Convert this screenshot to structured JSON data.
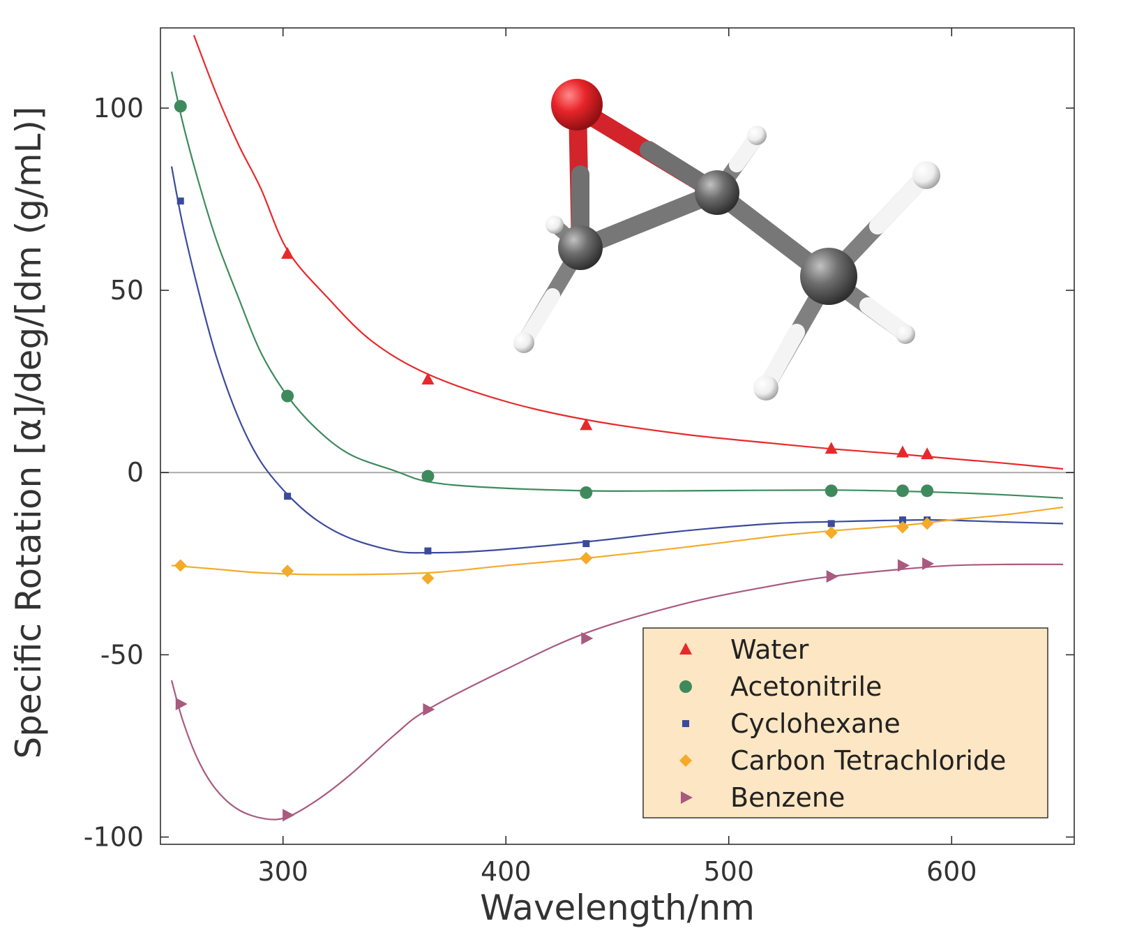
{
  "chart_data": {
    "type": "scatter",
    "xlabel": "Wavelength/nm",
    "ylabel": "Specific Rotation [α]/deg/[dm (g/mL)]",
    "xlim": [
      245,
      655
    ],
    "ylim": [
      -102,
      122
    ],
    "x_ticks": [
      300,
      400,
      500,
      600
    ],
    "y_ticks": [
      -100,
      -50,
      0,
      50,
      100
    ],
    "x_tick_labels": [
      "300",
      "400",
      "500",
      "600"
    ],
    "y_tick_labels": [
      "-100",
      "-50",
      "0",
      "50",
      "100"
    ],
    "zero_line": true,
    "grid": false,
    "legend_position": "bottom-right",
    "inset": "molecular-structure-image",
    "series": [
      {
        "name": "Water",
        "marker": "triangle-up",
        "color": "#e8292b",
        "points": [
          [
            302,
            60
          ],
          [
            365,
            25.5
          ],
          [
            436,
            13
          ],
          [
            546,
            6.5
          ],
          [
            578,
            5.5
          ],
          [
            589,
            5
          ]
        ],
        "curve": [
          [
            260,
            120
          ],
          [
            270,
            104
          ],
          [
            280,
            90
          ],
          [
            290,
            78
          ],
          [
            302,
            61
          ],
          [
            320,
            48
          ],
          [
            340,
            36
          ],
          [
            365,
            27
          ],
          [
            400,
            19.5
          ],
          [
            436,
            14.5
          ],
          [
            480,
            10.5
          ],
          [
            520,
            8
          ],
          [
            546,
            6.5
          ],
          [
            578,
            5
          ],
          [
            600,
            3.8
          ],
          [
            625,
            2.5
          ],
          [
            650,
            1
          ]
        ]
      },
      {
        "name": "Acetonitrile",
        "marker": "circle",
        "color": "#3e8a5c",
        "points": [
          [
            254,
            100.5
          ],
          [
            302,
            21
          ],
          [
            365,
            -1
          ],
          [
            436,
            -5.5
          ],
          [
            546,
            -5
          ],
          [
            578,
            -5
          ],
          [
            589,
            -5
          ]
        ],
        "curve": [
          [
            250,
            110
          ],
          [
            255,
            96
          ],
          [
            262,
            80
          ],
          [
            270,
            64
          ],
          [
            280,
            48
          ],
          [
            290,
            33
          ],
          [
            302,
            21
          ],
          [
            315,
            12
          ],
          [
            330,
            5
          ],
          [
            350,
            0.5
          ],
          [
            365,
            -2.5
          ],
          [
            390,
            -4
          ],
          [
            436,
            -5
          ],
          [
            480,
            -5
          ],
          [
            546,
            -4.8
          ],
          [
            589,
            -5.3
          ],
          [
            620,
            -6
          ],
          [
            650,
            -7
          ]
        ]
      },
      {
        "name": "Cyclohexane",
        "marker": "square",
        "color": "#3b4a9b",
        "points": [
          [
            254,
            74.5
          ],
          [
            302,
            -6.5
          ],
          [
            365,
            -21.5
          ],
          [
            436,
            -19.5
          ],
          [
            546,
            -14
          ],
          [
            578,
            -13
          ],
          [
            589,
            -13
          ]
        ],
        "curve": [
          [
            250,
            84
          ],
          [
            255,
            68
          ],
          [
            262,
            50
          ],
          [
            270,
            32
          ],
          [
            280,
            15
          ],
          [
            290,
            3
          ],
          [
            302,
            -6
          ],
          [
            315,
            -13
          ],
          [
            330,
            -18
          ],
          [
            350,
            -21.5
          ],
          [
            365,
            -22
          ],
          [
            390,
            -21.5
          ],
          [
            436,
            -19
          ],
          [
            480,
            -16
          ],
          [
            520,
            -14
          ],
          [
            546,
            -13.5
          ],
          [
            589,
            -13
          ],
          [
            620,
            -13.5
          ],
          [
            650,
            -14
          ]
        ]
      },
      {
        "name": "Carbon Tetrachloride",
        "marker": "diamond",
        "color": "#f5aa2a",
        "points": [
          [
            254,
            -25.5
          ],
          [
            302,
            -27
          ],
          [
            365,
            -29
          ],
          [
            436,
            -23.5
          ],
          [
            546,
            -16.5
          ],
          [
            578,
            -15
          ],
          [
            589,
            -14
          ]
        ],
        "curve": [
          [
            250,
            -25.5
          ],
          [
            270,
            -26.5
          ],
          [
            290,
            -27.5
          ],
          [
            320,
            -28
          ],
          [
            365,
            -27.5
          ],
          [
            400,
            -25.5
          ],
          [
            436,
            -23.5
          ],
          [
            480,
            -20.5
          ],
          [
            520,
            -17.5
          ],
          [
            546,
            -16
          ],
          [
            578,
            -14.5
          ],
          [
            600,
            -13
          ],
          [
            625,
            -11.5
          ],
          [
            650,
            -9.5
          ]
        ]
      },
      {
        "name": "Benzene",
        "marker": "triangle-right",
        "color": "#a85a7f",
        "points": [
          [
            254,
            -63.5
          ],
          [
            302,
            -94
          ],
          [
            365,
            -65
          ],
          [
            436,
            -45.5
          ],
          [
            546,
            -28.5
          ],
          [
            578,
            -25.5
          ],
          [
            589,
            -25
          ]
        ],
        "curve": [
          [
            250,
            -57
          ],
          [
            255,
            -68
          ],
          [
            262,
            -79
          ],
          [
            270,
            -87
          ],
          [
            280,
            -92.5
          ],
          [
            292,
            -95
          ],
          [
            302,
            -94.5
          ],
          [
            315,
            -90
          ],
          [
            330,
            -83
          ],
          [
            350,
            -72
          ],
          [
            365,
            -65
          ],
          [
            400,
            -54
          ],
          [
            436,
            -44
          ],
          [
            480,
            -36
          ],
          [
            520,
            -31
          ],
          [
            546,
            -28.5
          ],
          [
            578,
            -26.5
          ],
          [
            600,
            -25.5
          ],
          [
            625,
            -25.2
          ],
          [
            650,
            -25.2
          ]
        ]
      }
    ]
  }
}
